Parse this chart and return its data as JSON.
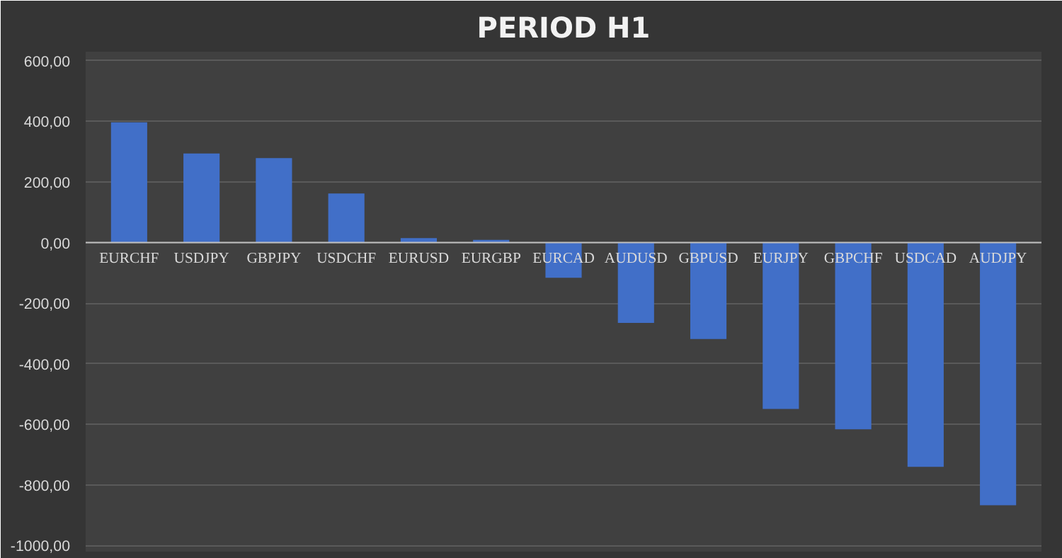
{
  "chart_data": {
    "type": "bar",
    "title": "PERIOD H1",
    "categories": [
      "EURCHF",
      "USDJPY",
      "GBPJPY",
      "USDCHF",
      "EURUSD",
      "EURGBP",
      "EURCAD",
      "AUDUSD",
      "GBPUSD",
      "EURJPY",
      "GBPCHF",
      "USDCAD",
      "AUDJPY"
    ],
    "values": [
      397,
      294,
      279,
      162,
      15,
      9,
      -116,
      -265,
      -318,
      -549,
      -616,
      -740,
      -867
    ],
    "color": "#416fc8",
    "ylim": [
      -1020,
      630
    ],
    "yticks": [
      {
        "value": -1000,
        "label": "-1000,00"
      },
      {
        "value": -800,
        "label": "-800,00"
      },
      {
        "value": -600,
        "label": "-600,00"
      },
      {
        "value": -400,
        "label": "-400,00"
      },
      {
        "value": -200,
        "label": "-200,00"
      },
      {
        "value": 0,
        "label": "0,00"
      },
      {
        "value": 200,
        "label": "200,00"
      },
      {
        "value": 400,
        "label": "400,00"
      },
      {
        "value": 600,
        "label": "600,00"
      }
    ],
    "grid": "y"
  }
}
